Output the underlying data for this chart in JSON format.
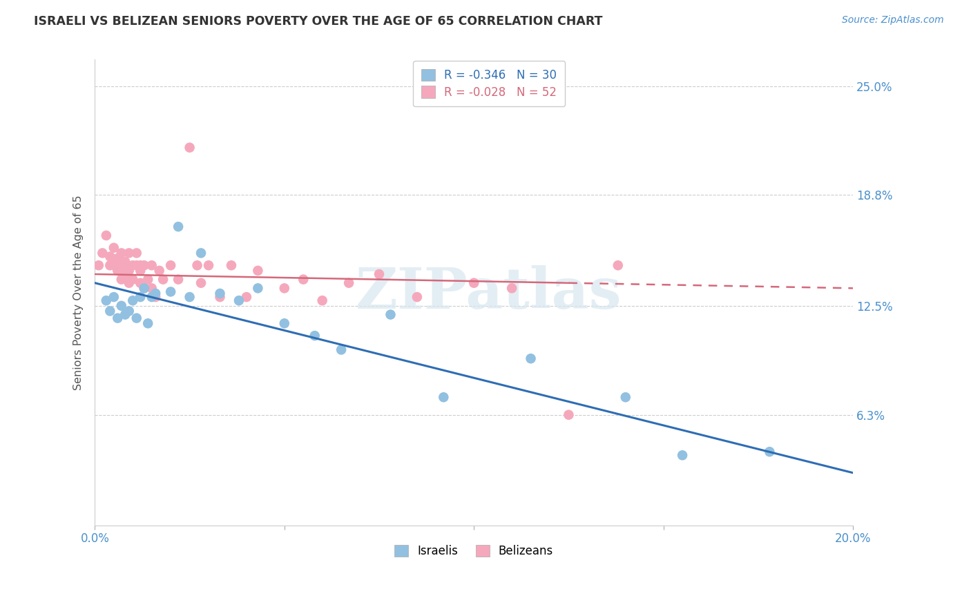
{
  "title": "ISRAELI VS BELIZEAN SENIORS POVERTY OVER THE AGE OF 65 CORRELATION CHART",
  "source": "Source: ZipAtlas.com",
  "ylabel": "Seniors Poverty Over the Age of 65",
  "xlim": [
    0.0,
    0.2
  ],
  "ylim": [
    0.0,
    0.265
  ],
  "xtick_positions": [
    0.0,
    0.05,
    0.1,
    0.15,
    0.2
  ],
  "xticklabels": [
    "0.0%",
    "",
    "",
    "",
    "20.0%"
  ],
  "ytick_positions": [
    0.063,
    0.125,
    0.188,
    0.25
  ],
  "ytick_labels": [
    "6.3%",
    "12.5%",
    "18.8%",
    "25.0%"
  ],
  "legend_R_blue": "-0.346",
  "legend_N_blue": "30",
  "legend_R_pink": "-0.028",
  "legend_N_pink": "52",
  "color_blue": "#92C0E0",
  "color_pink": "#F5A8BC",
  "trendline_blue": "#2E6DB4",
  "trendline_pink": "#D4687A",
  "watermark": "ZIPatlas",
  "israelis_x": [
    0.003,
    0.004,
    0.005,
    0.006,
    0.007,
    0.008,
    0.009,
    0.01,
    0.011,
    0.012,
    0.013,
    0.014,
    0.015,
    0.016,
    0.02,
    0.022,
    0.025,
    0.028,
    0.033,
    0.038,
    0.043,
    0.05,
    0.058,
    0.065,
    0.078,
    0.092,
    0.115,
    0.14,
    0.155,
    0.178
  ],
  "israelis_y": [
    0.128,
    0.122,
    0.13,
    0.118,
    0.125,
    0.12,
    0.122,
    0.128,
    0.118,
    0.13,
    0.135,
    0.115,
    0.13,
    0.132,
    0.133,
    0.17,
    0.13,
    0.155,
    0.132,
    0.128,
    0.135,
    0.115,
    0.108,
    0.1,
    0.12,
    0.073,
    0.095,
    0.073,
    0.04,
    0.042
  ],
  "belizeans_x": [
    0.001,
    0.002,
    0.003,
    0.004,
    0.004,
    0.005,
    0.005,
    0.006,
    0.006,
    0.007,
    0.007,
    0.007,
    0.008,
    0.008,
    0.009,
    0.009,
    0.009,
    0.01,
    0.01,
    0.011,
    0.011,
    0.012,
    0.012,
    0.012,
    0.013,
    0.013,
    0.014,
    0.015,
    0.015,
    0.016,
    0.017,
    0.018,
    0.02,
    0.022,
    0.025,
    0.027,
    0.028,
    0.03,
    0.033,
    0.036,
    0.04,
    0.043,
    0.05,
    0.055,
    0.06,
    0.067,
    0.075,
    0.085,
    0.1,
    0.11,
    0.125,
    0.138
  ],
  "belizeans_y": [
    0.148,
    0.155,
    0.165,
    0.148,
    0.153,
    0.148,
    0.158,
    0.152,
    0.145,
    0.155,
    0.148,
    0.14,
    0.15,
    0.143,
    0.145,
    0.138,
    0.155,
    0.148,
    0.14,
    0.148,
    0.155,
    0.148,
    0.138,
    0.145,
    0.135,
    0.148,
    0.14,
    0.135,
    0.148,
    0.13,
    0.145,
    0.14,
    0.148,
    0.14,
    0.215,
    0.148,
    0.138,
    0.148,
    0.13,
    0.148,
    0.13,
    0.145,
    0.135,
    0.14,
    0.128,
    0.138,
    0.143,
    0.13,
    0.138,
    0.135,
    0.063,
    0.148
  ],
  "blue_trend_x0": 0.0,
  "blue_trend_y0": 0.138,
  "blue_trend_x1": 0.2,
  "blue_trend_y1": 0.03,
  "pink_trend_x0": 0.0,
  "pink_trend_y0": 0.143,
  "pink_trend_x1_solid": 0.125,
  "pink_trend_y1_solid": 0.138,
  "pink_trend_x1_dash": 0.2,
  "pink_trend_y1_dash": 0.135
}
